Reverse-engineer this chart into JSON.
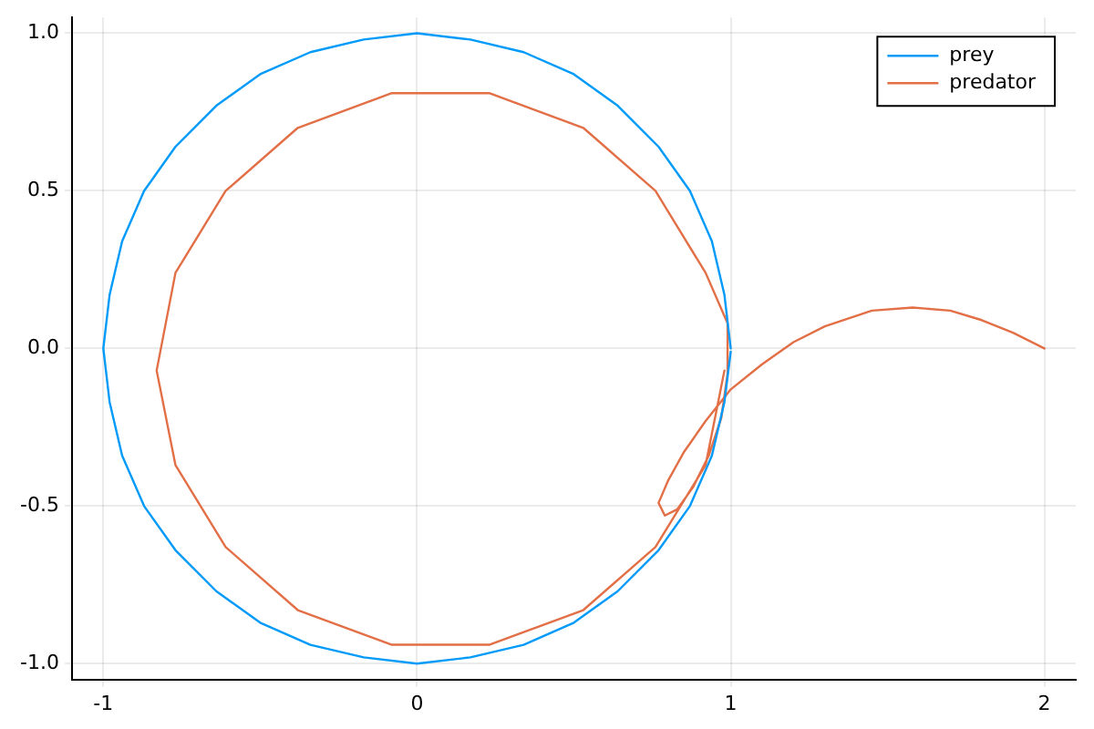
{
  "chart_data": {
    "type": "line",
    "xlim": [
      -1.1,
      2.1
    ],
    "ylim": [
      -1.05,
      1.05
    ],
    "xticks": [
      -1,
      0,
      1,
      2
    ],
    "yticks": [
      {
        "value": -1,
        "label": "-1.0"
      },
      -0.5,
      {
        "value": 0,
        "label": "0.0"
      },
      0.5,
      {
        "value": 1,
        "label": "1.0"
      }
    ],
    "grid": true,
    "legend": "top right",
    "line_style": "solid",
    "series": [
      {
        "name": "prey",
        "color": "#009af9",
        "x": [
          1,
          0.98,
          0.94,
          0.87,
          0.77,
          0.64,
          0.5,
          0.34,
          0.17,
          0,
          -0.17,
          -0.34,
          -0.5,
          -0.64,
          -0.77,
          -0.87,
          -0.94,
          -0.98,
          -1,
          -0.98,
          -0.94,
          -0.87,
          -0.77,
          -0.64,
          -0.5,
          -0.34,
          -0.17,
          0,
          0.17,
          0.34,
          0.5,
          0.64,
          0.77,
          0.87,
          0.94,
          0.98,
          1.0
        ],
        "values": [
          0,
          0.17,
          0.34,
          0.5,
          0.64,
          0.77,
          0.87,
          0.94,
          0.98,
          1,
          0.98,
          0.94,
          0.87,
          0.77,
          0.64,
          0.5,
          0.34,
          0.17,
          0,
          -0.17,
          -0.34,
          -0.5,
          -0.64,
          -0.77,
          -0.87,
          -0.94,
          -0.98,
          -1,
          -0.98,
          -0.94,
          -0.87,
          -0.77,
          -0.64,
          -0.5,
          -0.34,
          -0.17,
          -0.01
        ]
      },
      {
        "name": "predator",
        "color": "#e26f46",
        "x": [
          2,
          1.9,
          1.8,
          1.7,
          1.58,
          1.45,
          1.3,
          1.2,
          1.1,
          1.0,
          0.92,
          0.85,
          0.8,
          0.77,
          0.79,
          0.83,
          0.88,
          0.93,
          0.97,
          0.99,
          0.99,
          0.92,
          0.76,
          0.53,
          0.23,
          -0.08,
          -0.38,
          -0.61,
          -0.77,
          -0.83,
          -0.77,
          -0.61,
          -0.38,
          -0.08,
          0.23,
          0.53,
          0.76,
          0.92,
          0.98
        ],
        "values": [
          0,
          0.05,
          0.09,
          0.12,
          0.13,
          0.12,
          0.07,
          0.02,
          -0.05,
          -0.13,
          -0.23,
          -0.33,
          -0.42,
          -0.49,
          -0.53,
          -0.51,
          -0.44,
          -0.34,
          -0.22,
          -0.08,
          0.08,
          0.24,
          0.5,
          0.7,
          0.81,
          0.81,
          0.7,
          0.5,
          0.24,
          -0.07,
          -0.37,
          -0.63,
          -0.83,
          -0.94,
          -0.94,
          -0.83,
          -0.63,
          -0.37,
          -0.07
        ]
      }
    ]
  }
}
